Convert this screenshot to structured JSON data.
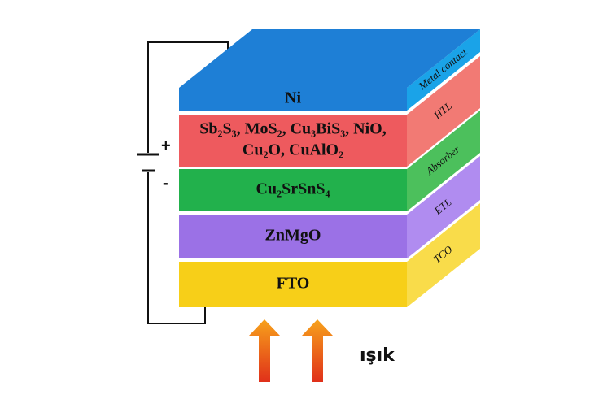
{
  "layers": [
    {
      "lines": [
        "Ni"
      ],
      "side_label": "Metal contact",
      "color": "#1e7fd6",
      "side_color": "#1aa3e8"
    },
    {
      "lines": [
        "Sb₂S₃, MoS₂, Cu₃BiS₃, NiO,",
        "Cu₂O, CuAlO₂"
      ],
      "side_label": "HTL",
      "color": "#ee5a5e",
      "side_color": "#f27a74"
    },
    {
      "lines": [
        "Cu₂SrSnS₄"
      ],
      "side_label": "Absorber",
      "color": "#22b14c",
      "side_color": "#4cc05c"
    },
    {
      "lines": [
        "ZnMgO"
      ],
      "side_label": "ETL",
      "color": "#9b71e6",
      "side_color": "#b08cf0"
    },
    {
      "lines": [
        "FTO"
      ],
      "side_label": "TCO",
      "color": "#f7cf18",
      "side_color": "#f9dc4a"
    }
  ],
  "plus": "+",
  "minus": "-",
  "light_label": "ışık"
}
